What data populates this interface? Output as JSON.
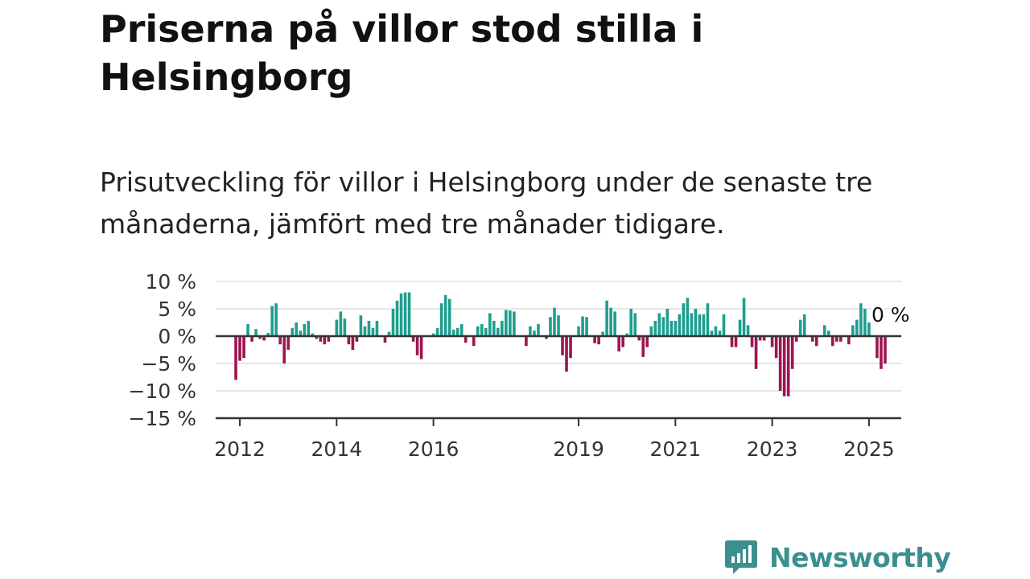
{
  "title": "Priserna på villor stod stilla i Helsingborg",
  "subtitle": "Prisutveckling för villor i Helsingborg under de senaste tre månaderna, jämfört med tre månader tidigare.",
  "brand": {
    "name": "Newsworthy",
    "color": "#3c8f8f"
  },
  "chart_data": {
    "type": "bar",
    "title": "Priserna på villor stod stilla i Helsingborg",
    "subtitle": "Prisutveckling för villor i Helsingborg under de senaste tre månaderna, jämfört med tre månader tidigare.",
    "xlabel": "",
    "ylabel": "",
    "ylim": [
      -15,
      10
    ],
    "y_ticks": [
      10,
      5,
      0,
      -5,
      -10,
      -15
    ],
    "y_tick_labels": [
      "10 %",
      "5 %",
      "0 %",
      "−5 %",
      "−10 %",
      "−15 %"
    ],
    "x_ticks": [
      2012,
      2014,
      2016,
      2019,
      2021,
      2023,
      2025
    ],
    "x_tick_labels": [
      "2012",
      "2014",
      "2016",
      "2019",
      "2021",
      "2023",
      "2025"
    ],
    "x_range": [
      "2011-07",
      "2025-09"
    ],
    "grid": true,
    "positive_color": "#1f9e8f",
    "negative_color": "#9e1550",
    "annotation": "0 %",
    "series": [
      {
        "start": "2011-12",
        "frequency": "monthly",
        "values": [
          -8,
          -4.5,
          -4,
          2.2,
          -1,
          1.3,
          -0.5,
          -0.8,
          0.6,
          5.5,
          6,
          -1.5,
          -5,
          -2.5,
          1.5,
          2.5,
          1,
          2.2,
          2.8,
          0.5,
          -0.5,
          -1,
          -1.5,
          -1,
          0,
          3,
          4.5,
          3.2,
          -1.5,
          -2.5,
          -1,
          3.8,
          1.8,
          2.8,
          1.5,
          2.8,
          0,
          -1.2,
          0.8,
          5,
          6.5,
          7.8,
          8,
          8,
          -1,
          -3.5,
          -4.2,
          0,
          0,
          0.5,
          1.5,
          6,
          7.5,
          6.8,
          1.2,
          1.5,
          2.2,
          -1.2,
          0,
          -1.8,
          1.8,
          2.2,
          1.5,
          4.2,
          2.8,
          1.5,
          2.8,
          4.8,
          4.7,
          4.5,
          0,
          0,
          -1.8,
          1.8,
          1,
          2.2,
          0,
          -0.5,
          3.5,
          5.2,
          3.8,
          -3.5,
          -6.5,
          -4,
          0,
          1.8,
          3.6,
          3.5,
          0,
          -1.3,
          -1.5,
          0.8,
          6.5,
          5.2,
          4.5,
          -2.8,
          -2,
          0.5,
          5,
          4.2,
          -0.8,
          -3.8,
          -2,
          1.8,
          2.8,
          4.2,
          3.5,
          5,
          2.8,
          2.8,
          4,
          6,
          7,
          4.2,
          5,
          4,
          4,
          6,
          1,
          1.8,
          1,
          4,
          0,
          -2,
          -2,
          3,
          7,
          2,
          -2,
          -6,
          -0.8,
          -0.8,
          0,
          -2,
          -4,
          -10,
          -11,
          -11,
          -6,
          -1,
          3,
          4,
          0,
          -1,
          -1.8,
          0,
          2,
          1,
          -1.8,
          -1,
          -1,
          0,
          -1.5,
          2,
          3,
          6,
          5,
          2.5,
          0,
          -4,
          -6,
          -5,
          0
        ]
      }
    ]
  }
}
